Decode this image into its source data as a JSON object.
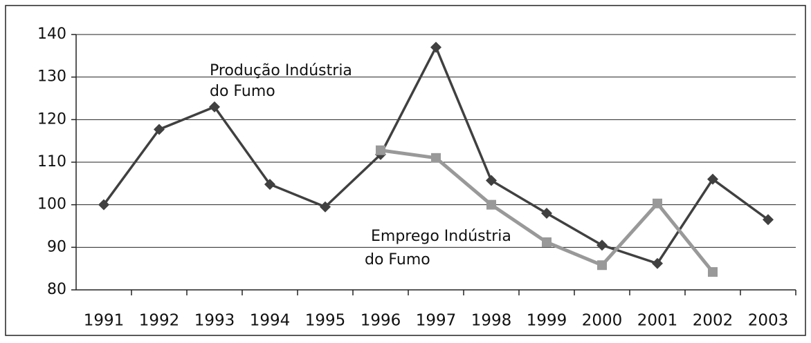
{
  "chart_data": {
    "type": "line",
    "categories": [
      "1991",
      "1992",
      "1993",
      "1994",
      "1995",
      "1996",
      "1997",
      "1998",
      "1999",
      "2000",
      "2001",
      "2002",
      "2003"
    ],
    "series": [
      {
        "name": [
          "Produção Indústria",
          "do Fumo"
        ],
        "color": "#404040",
        "marker": "diamond",
        "values": [
          100,
          117.7,
          123,
          104.8,
          99.5,
          111.8,
          137,
          105.7,
          98,
          90.5,
          86.2,
          106,
          96.5
        ]
      },
      {
        "name": [
          "Emprego Indústria",
          "do Fumo"
        ],
        "color": "#999999",
        "marker": "square",
        "values": [
          null,
          null,
          null,
          null,
          null,
          112.8,
          111,
          100,
          91.2,
          85.8,
          100.3,
          84.2,
          null
        ]
      }
    ],
    "ylim": [
      80,
      140
    ],
    "yticks": [
      80,
      90,
      100,
      110,
      120,
      130,
      140
    ],
    "grid": true
  }
}
